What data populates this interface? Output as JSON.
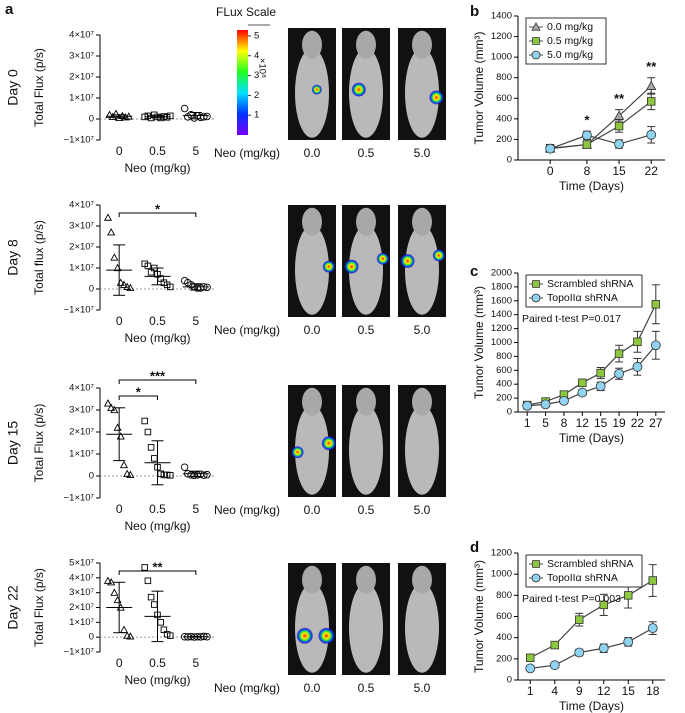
{
  "panel_labels": [
    "a",
    "b",
    "c",
    "d"
  ],
  "imaging": {
    "scale_title": "FLux Scale",
    "scale_unit": "×10⁸",
    "scale_lim": [
      0,
      5.3
    ],
    "scale_ticks": [
      1,
      2,
      3,
      4,
      5
    ],
    "rows": [
      {
        "axis_label": "Neo (mg/kg)",
        "doses": [
          "0.0",
          "0.5",
          "5.0"
        ]
      },
      {
        "axis_label": "Neo (mg/kg)",
        "doses": [
          "0.0",
          "0.5",
          "5.0"
        ]
      },
      {
        "axis_label": "Neo (mg/kg)",
        "doses": [
          "0.0",
          "0.5",
          "5.0"
        ]
      },
      {
        "axis_label": "Neo (mg/kg)",
        "doses": [
          "0.0",
          "0.5",
          "5.0"
        ]
      }
    ]
  },
  "chart_data": [
    {
      "type": "dot",
      "row_label": "Day 0",
      "y_label": "Total Flux (p/s)",
      "x_label": "Neo (mg/kg)",
      "categories": [
        "0",
        "0.5",
        "5"
      ],
      "markers": [
        "triangle",
        "square",
        "circle"
      ],
      "groups": [
        [
          2000000,
          1000000,
          2500000,
          500000,
          1500000,
          800000,
          1200000
        ],
        [
          1000000,
          1500000,
          500000,
          2000000,
          1000000,
          500000,
          1200000,
          800000,
          1500000
        ],
        [
          5000000,
          1000000,
          2000000,
          500000,
          1500000,
          800000,
          1000000,
          1200000
        ]
      ],
      "means": [
        1300000,
        1100000,
        1600000
      ],
      "sds": [
        700000,
        500000,
        1500000
      ],
      "ylim": [
        -10000000,
        40000000
      ],
      "yticks": [
        {
          "value": -10000000,
          "label": "−1×10⁷"
        },
        0,
        {
          "value": 10000000,
          "label": "1×10⁷"
        },
        {
          "value": 20000000,
          "label": "2×10⁷"
        },
        {
          "value": 30000000,
          "label": "3×10⁷"
        },
        {
          "value": 40000000,
          "label": "4×10⁷"
        }
      ]
    },
    {
      "type": "dot",
      "row_label": "Day 8",
      "y_label": "Total flux (p/s)",
      "x_label": "Neo (mg/kg)",
      "categories": [
        "0",
        "0.5",
        "5"
      ],
      "markers": [
        "triangle",
        "square",
        "circle"
      ],
      "groups": [
        [
          34000000,
          27000000,
          15000000,
          10000000,
          3000000,
          2000000,
          1000000,
          500000
        ],
        [
          12000000,
          11000000,
          8000000,
          10000000,
          7000000,
          5000000,
          3000000,
          2000000,
          1000000
        ],
        [
          4000000,
          3000000,
          2000000,
          1000000,
          500000,
          500000,
          1000000,
          800000
        ]
      ],
      "means": [
        9000000,
        6000000,
        1000000
      ],
      "sds": [
        12000000,
        4000000,
        1500000
      ],
      "significance": [
        {
          "from": "0",
          "to": "5",
          "label": "*"
        }
      ],
      "ylim": [
        -10000000,
        40000000
      ],
      "yticks": [
        {
          "value": -10000000,
          "label": "−1×10⁷"
        },
        0,
        {
          "value": 10000000,
          "label": "1×10⁷"
        },
        {
          "value": 20000000,
          "label": "2×10⁷"
        },
        {
          "value": 30000000,
          "label": "3×10⁷"
        },
        {
          "value": 40000000,
          "label": "4×10⁷"
        }
      ]
    },
    {
      "type": "dot",
      "row_label": "Day 15",
      "y_label": "Total Flux (p/s)",
      "x_label": "Neo (mg/kg)",
      "categories": [
        "0",
        "0.5",
        "5"
      ],
      "markers": [
        "triangle",
        "square",
        "circle"
      ],
      "groups": [
        [
          33000000,
          31000000,
          30000000,
          22000000,
          18000000,
          5000000,
          1000000,
          500000
        ],
        [
          25000000,
          20000000,
          13000000,
          8000000,
          4000000,
          1000000,
          500000,
          500000,
          300000
        ],
        [
          4000000,
          1000000,
          500000,
          300000,
          500000,
          800000,
          400000,
          600000
        ]
      ],
      "means": [
        19000000,
        6000000,
        1000000
      ],
      "sds": [
        12000000,
        10000000,
        1200000
      ],
      "significance": [
        {
          "from": "0",
          "to": "0.5",
          "label": "*"
        },
        {
          "from": "0",
          "to": "5",
          "label": "***"
        }
      ],
      "ylim": [
        -10000000,
        40000000
      ],
      "yticks": [
        {
          "value": -10000000,
          "label": "−1×10⁷"
        },
        0,
        {
          "value": 10000000,
          "label": "1×10⁷"
        },
        {
          "value": 20000000,
          "label": "2×10⁷"
        },
        {
          "value": 30000000,
          "label": "3×10⁷"
        },
        {
          "value": 40000000,
          "label": "4×10⁷"
        }
      ]
    },
    {
      "type": "dot",
      "row_label": "Day 22",
      "y_label": "Total Flux (p/s)",
      "x_label": "Neo (mg/kg)",
      "categories": [
        "0",
        "0.5",
        "5"
      ],
      "markers": [
        "triangle",
        "square",
        "circle"
      ],
      "groups": [
        [
          38000000,
          37000000,
          30000000,
          25000000,
          20000000,
          5000000,
          1000000,
          500000
        ],
        [
          47000000,
          38000000,
          27000000,
          22000000,
          15000000,
          10000000,
          5000000,
          2000000,
          1000000
        ],
        [
          300000,
          200000,
          400000,
          100000,
          300000,
          200000,
          500000,
          300000
        ]
      ],
      "means": [
        20000000,
        14000000,
        300000
      ],
      "sds": [
        17000000,
        17000000,
        300000
      ],
      "significance": [
        {
          "from": "0",
          "to": "5",
          "label": "**"
        }
      ],
      "ylim": [
        -10000000,
        50000000
      ],
      "yticks": [
        {
          "value": -10000000,
          "label": "−1×10⁷"
        },
        0,
        {
          "value": 10000000,
          "label": "1×10⁷"
        },
        {
          "value": 20000000,
          "label": "2×10⁷"
        },
        {
          "value": 30000000,
          "label": "3×10⁷"
        },
        {
          "value": 40000000,
          "label": "4×10⁷"
        },
        {
          "value": 50000000,
          "label": "5×10⁷"
        }
      ]
    },
    {
      "type": "line",
      "x_label": "Time (Days)",
      "y_label": "Tumor Volume (mm³)",
      "legend": "upper left",
      "x": [
        0,
        8,
        15,
        22
      ],
      "xlim": [
        -7,
        25
      ],
      "xticks": [
        0,
        8,
        15,
        22
      ],
      "ylim": [
        0,
        1400
      ],
      "yticks": [
        0,
        200,
        400,
        600,
        800,
        1000,
        1200,
        1400
      ],
      "series": [
        {
          "name": "0.0 mg/kg",
          "color": "#a6a6a6",
          "marker": "triangle",
          "values": [
            110,
            150,
            430,
            720
          ],
          "errors": [
            20,
            30,
            60,
            80
          ]
        },
        {
          "name": "0.5 mg/kg",
          "color": "#8dc63f",
          "marker": "square",
          "values": [
            115,
            150,
            330,
            570
          ],
          "errors": [
            20,
            25,
            60,
            80
          ]
        },
        {
          "name": "5.0 mg/kg",
          "color": "#8fd3f0",
          "marker": "circle",
          "values": [
            110,
            240,
            155,
            245
          ],
          "errors": [
            20,
            40,
            40,
            80
          ]
        }
      ],
      "annotations": [
        {
          "x": 8,
          "label": "*"
        },
        {
          "x": 15,
          "label": "**"
        },
        {
          "x": 22,
          "label": "**"
        }
      ]
    },
    {
      "type": "line",
      "x_label": "Time (Days)",
      "y_label": "Tumor Volume (mm³)",
      "legend": "upper left",
      "categories": [
        "1",
        "5",
        "8",
        "12",
        "15",
        "19",
        "22",
        "27"
      ],
      "ylim": [
        0,
        2000
      ],
      "yticks": [
        0,
        200,
        400,
        600,
        800,
        1000,
        1200,
        1400,
        1600,
        1800,
        2000
      ],
      "series": [
        {
          "name": "Scrambled shRNA",
          "color": "#8dc63f",
          "marker": "square",
          "values": [
            100,
            150,
            250,
            420,
            560,
            840,
            1010,
            1550
          ],
          "errors": [
            20,
            30,
            40,
            50,
            80,
            120,
            150,
            280
          ]
        },
        {
          "name": "TopoIIα shRNA",
          "color": "#8fd3f0",
          "marker": "circle",
          "values": [
            90,
            110,
            160,
            280,
            370,
            550,
            650,
            960
          ],
          "errors": [
            20,
            20,
            30,
            40,
            60,
            80,
            120,
            200
          ]
        }
      ],
      "note": "Paired t-test P=0.017"
    },
    {
      "type": "line",
      "x_label": "Time (Days)",
      "y_label": "Tumor Volume (mm³)",
      "legend": "upper left",
      "categories": [
        "1",
        "4",
        "9",
        "12",
        "15",
        "18"
      ],
      "ylim": [
        0,
        1200
      ],
      "yticks": [
        0,
        200,
        400,
        600,
        800,
        1000,
        1200
      ],
      "series": [
        {
          "name": "Scrambled shRNA",
          "color": "#8dc63f",
          "marker": "square",
          "values": [
            210,
            330,
            570,
            710,
            800,
            940
          ],
          "errors": [
            30,
            30,
            60,
            100,
            120,
            150
          ]
        },
        {
          "name": "TopoIIα shRNA",
          "color": "#8fd3f0",
          "marker": "circle",
          "values": [
            110,
            140,
            260,
            300,
            360,
            490
          ],
          "errors": [
            20,
            20,
            30,
            40,
            40,
            60
          ]
        }
      ],
      "note": "Paired t-test P=0.003"
    }
  ]
}
